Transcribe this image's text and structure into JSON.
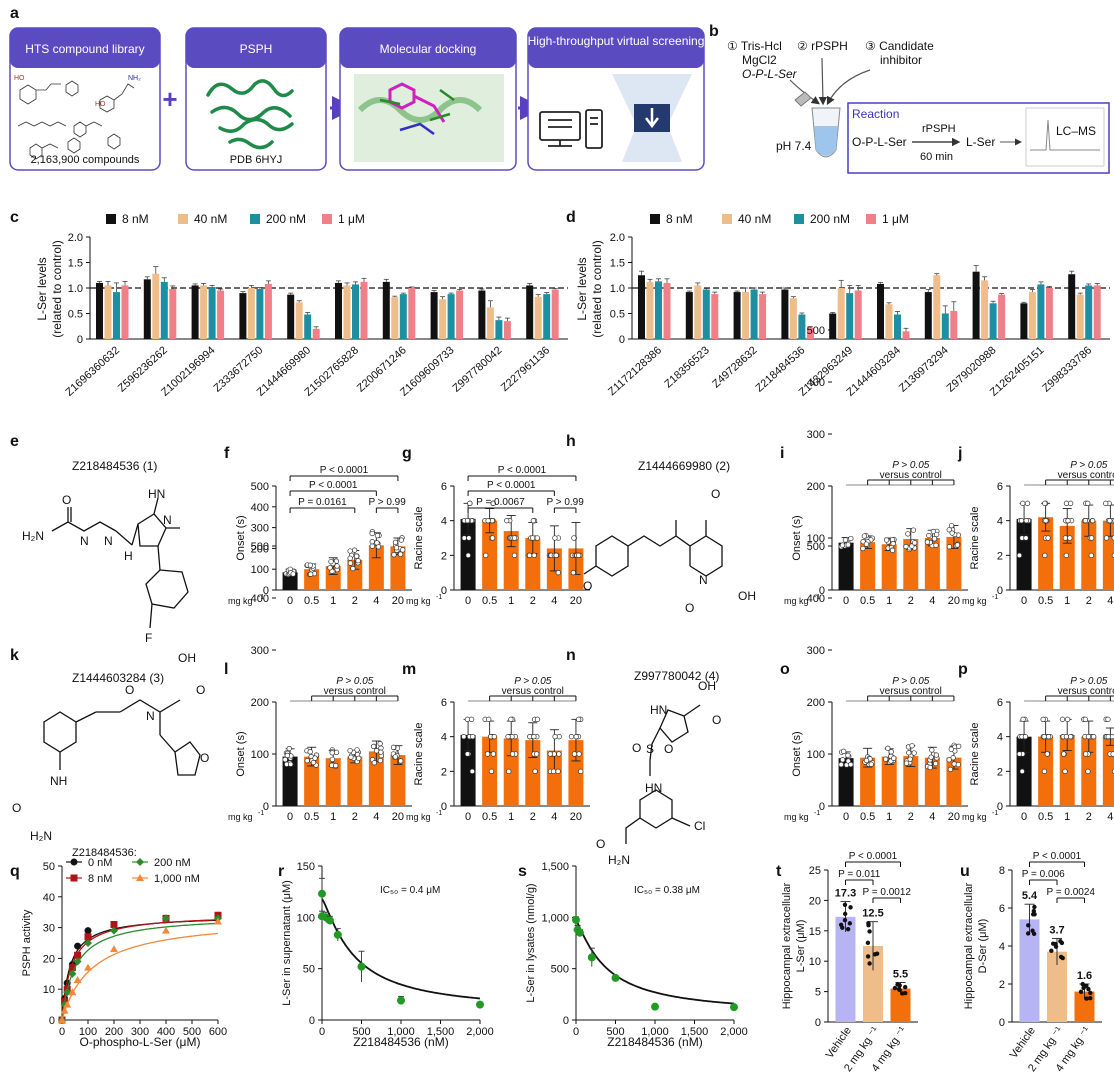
{
  "colors": {
    "black": "#111111",
    "tan": "#eebd8a",
    "teal": "#1e8fa3",
    "pink": "#ef8088",
    "orange": "#f26f0c",
    "lavender": "#b7b4f3",
    "box_blue": "#5b4bc1",
    "arrow": "#5a3fc0",
    "q_black": "#111111",
    "q_red": "#b01515",
    "q_green": "#2d8a2d",
    "q_orange": "#f08a3a",
    "green": "#1f9a22"
  },
  "panel_a": {
    "label": "a",
    "box1_title": "HTS compound library",
    "box1_caption": "2,163,900 compounds",
    "box2_title": "PSPH",
    "box2_caption": "PDB 6HYJ",
    "box3_title": "Molecular docking",
    "box4_title": "High-throughput virtual screening",
    "plus": "+"
  },
  "panel_b": {
    "label": "b",
    "item1": "① Tris-Hcl",
    "item1b": "MgCl2",
    "item1c": "O-P-L-Ser",
    "item2": "② rPSPH",
    "item3": "③ Candidate",
    "item3b": "inhibitor",
    "ph": "pH 7.4",
    "reaction_title": "Reaction",
    "substrate": "O-P-L-Ser",
    "enzyme": "rPSPH",
    "time": "60 min",
    "product": "L-Ser",
    "detector": "LC–MS"
  },
  "legend_cd": [
    "8 nM",
    "40 nM",
    "200 nM",
    "1 μM"
  ],
  "panel_c": {
    "label": "c",
    "ylabel1": "L-Ser levels",
    "ylabel2": "(related to control)",
    "yticks": [
      "0",
      "0.5",
      "1.0",
      "1.5",
      "2.0"
    ],
    "compounds": [
      "Z1696360632",
      "Z596236262",
      "Z1002196994",
      "Z333672750",
      "Z1444669980",
      "Z1502765828",
      "Z200671246",
      "Z1609609733",
      "Z997780042",
      "Z227961136"
    ]
  },
  "panel_d": {
    "label": "d",
    "ylabel1": "L-Ser levels",
    "ylabel2": "(related to control)",
    "yticks": [
      "0",
      "0.5",
      "1.0",
      "1.5",
      "2.0"
    ],
    "compounds": [
      "Z1172128386",
      "Z18356523",
      "Z49728632",
      "Z218484536",
      "Z1432963249",
      "Z1444603284",
      "Z136973294",
      "Z979020988",
      "Z1262405151",
      "Z998333786"
    ]
  },
  "structures": {
    "e_label": "e",
    "e_title": "Z218484536 (1)",
    "h_label": "h",
    "h_title": "Z1444669980 (2)",
    "k_label": "k",
    "k_title": "Z1444603284 (3)",
    "n_label": "n",
    "n_title": "Z997780042 (4)",
    "atoms": {
      "O": "O",
      "H2N": "H₂N",
      "N": "N",
      "H": "H",
      "HN": "HN",
      "NH": "NH",
      "F": "F",
      "OH": "OH",
      "S": "S",
      "Cl": "Cl"
    }
  },
  "behavior": {
    "xlabels": [
      "0",
      "0.5",
      "1",
      "2",
      "4",
      "20"
    ],
    "mgkg": "mg kg",
    "mgkg_sup": "-1",
    "onset_ylabel": "Onset (s)",
    "racine_ylabel": "Racine scale",
    "onset_ticks": [
      "0",
      "100",
      "200",
      "300",
      "400",
      "500"
    ],
    "racine_ticks": [
      "0",
      "2",
      "4",
      "6"
    ],
    "p_ns": "P > 0.05",
    "p_vs": "versus control"
  },
  "panel_f": {
    "label": "f",
    "p1": "P < 0.0001",
    "p2": "P < 0.0001",
    "p3": "P = 0.0161",
    "p4": "P > 0.99"
  },
  "panel_g": {
    "label": "g",
    "p1": "P < 0.0001",
    "p2": "P < 0.0001",
    "p3": "P = 0.0067",
    "p4": "P > 0.99"
  },
  "panel_i": {
    "label": "i"
  },
  "panel_j": {
    "label": "j"
  },
  "panel_l": {
    "label": "l"
  },
  "panel_m": {
    "label": "m"
  },
  "panel_o": {
    "label": "o"
  },
  "panel_p": {
    "label": "p"
  },
  "panel_q": {
    "label": "q",
    "title": "Z218484536:",
    "legend": [
      "0 nM",
      "8 nM",
      "200 nM",
      "1,000 nM"
    ],
    "ylabel": "PSPH activity",
    "xlabel": "O-phospho-L-Ser (μM)",
    "xticks": [
      "0",
      "100",
      "200",
      "300",
      "400",
      "500",
      "600"
    ],
    "yticks": [
      "0",
      "10",
      "20",
      "30",
      "40",
      "50"
    ]
  },
  "panel_r": {
    "label": "r",
    "ylabel": "L-Ser in supernatant (μM)",
    "xlabel": "Z218484536 (nM)",
    "ic50": "IC₅₀ = 0.4 μM",
    "xticks": [
      "0",
      "500",
      "1,000",
      "1,500",
      "2,000"
    ],
    "yticks": [
      "0",
      "50",
      "100",
      "150"
    ]
  },
  "panel_s": {
    "label": "s",
    "ylabel": "L-Ser in lysates (nmol/g)",
    "xlabel": "Z218484536 (nM)",
    "ic50": "IC₅₀ = 0.38 μM",
    "xticks": [
      "0",
      "500",
      "1,000",
      "1,500",
      "2,000"
    ],
    "yticks": [
      "0",
      "500",
      "1,000",
      "1,500"
    ]
  },
  "panel_t": {
    "label": "t",
    "ylabel1": "Hippocampal extracellular",
    "ylabel2": "L-Ser (μM)",
    "p1": "P < 0.0001",
    "p2": "P = 0.011",
    "p3": "P = 0.0012",
    "yticks": [
      "0",
      "5",
      "10",
      "15",
      "20",
      "25"
    ],
    "cats": [
      "Vehicle",
      "2 mg kg ⁻¹",
      "4 mg kg ⁻¹"
    ],
    "vals": [
      "17.3",
      "12.5",
      "5.5"
    ]
  },
  "panel_u": {
    "label": "u",
    "ylabel1": "Hippocampal extracellular",
    "ylabel2": "D-Ser (μM)",
    "p1": "P < 0.0001",
    "p2": "P = 0.006",
    "p3": "P = 0.0024",
    "yticks": [
      "0",
      "2",
      "4",
      "6",
      "8"
    ],
    "cats": [
      "Vehicle",
      "2 mg kg ⁻¹",
      "4 mg kg ⁻¹"
    ],
    "vals": [
      "5.4",
      "3.7",
      "1.6"
    ]
  },
  "chart_data": [
    {
      "type": "bar",
      "panel": "c",
      "categories": [
        "Z1696360632",
        "Z596236262",
        "Z1002196994",
        "Z333672750",
        "Z1444669980",
        "Z1502765828",
        "Z200671246",
        "Z1609609733",
        "Z997780042",
        "Z227961136"
      ],
      "ylabel": "L-Ser levels (related to control)",
      "ylim": [
        0,
        2.0
      ],
      "series": [
        {
          "name": "8 nM",
          "values": [
            1.1,
            1.17,
            1.05,
            0.9,
            0.87,
            1.1,
            1.12,
            0.92,
            0.95,
            1.05
          ]
        },
        {
          "name": "40 nM",
          "values": [
            1.05,
            1.28,
            1.05,
            1.0,
            0.72,
            1.05,
            0.82,
            0.78,
            0.62,
            0.83
          ]
        },
        {
          "name": "200 nM",
          "values": [
            0.92,
            1.12,
            1.02,
            0.98,
            0.48,
            1.07,
            0.88,
            0.88,
            0.37,
            0.88
          ]
        },
        {
          "name": "1 μM",
          "values": [
            1.05,
            0.98,
            0.95,
            1.08,
            0.2,
            1.12,
            1.0,
            0.95,
            0.35,
            0.97
          ]
        }
      ],
      "errors": [
        [
          0.03,
          0.05,
          0.03,
          0.03,
          0.03,
          0.04,
          0.05,
          0.03,
          0.03,
          0.04
        ],
        [
          0.08,
          0.14,
          0.04,
          0.05,
          0.03,
          0.05,
          0.02,
          0.05,
          0.13,
          0.04
        ],
        [
          0.18,
          0.08,
          0.03,
          0.03,
          0.04,
          0.05,
          0.02,
          0.02,
          0.06,
          0.03
        ],
        [
          0.08,
          0.06,
          0.03,
          0.06,
          0.04,
          0.07,
          0.02,
          0.02,
          0.06,
          0.02
        ]
      ]
    },
    {
      "type": "bar",
      "panel": "d",
      "categories": [
        "Z1172128386",
        "Z18356523",
        "Z49728632",
        "Z218484536",
        "Z1432963249",
        "Z1444603284",
        "Z136973294",
        "Z979020988",
        "Z1262405151",
        "Z998333786"
      ],
      "ylabel": "L-Ser levels (related to control)",
      "ylim": [
        0,
        2.0
      ],
      "series": [
        {
          "name": "8 nM",
          "values": [
            1.25,
            0.92,
            0.92,
            0.97,
            0.5,
            1.08,
            0.92,
            1.32,
            0.7,
            1.27
          ]
        },
        {
          "name": "40 nM",
          "values": [
            1.12,
            1.05,
            0.92,
            0.8,
            1.0,
            0.68,
            1.25,
            1.15,
            0.92,
            0.87
          ]
        },
        {
          "name": "200 nM",
          "values": [
            1.13,
            0.97,
            0.97,
            0.48,
            0.9,
            0.48,
            0.5,
            0.7,
            1.07,
            1.05
          ]
        },
        {
          "name": "1 μM",
          "values": [
            1.1,
            0.88,
            0.88,
            0.22,
            0.95,
            0.15,
            0.55,
            0.87,
            1.0,
            1.05
          ]
        }
      ],
      "errors": [
        [
          0.08,
          0.02,
          0.02,
          0.03,
          0.02,
          0.03,
          0.05,
          0.12,
          0.02,
          0.06
        ],
        [
          0.05,
          0.05,
          0.08,
          0.03,
          0.15,
          0.03,
          0.03,
          0.07,
          0.05,
          0.03
        ],
        [
          0.05,
          0.02,
          0.03,
          0.03,
          0.15,
          0.06,
          0.15,
          0.04,
          0.05,
          0.03
        ],
        [
          0.08,
          0.04,
          0.04,
          0.02,
          0.1,
          0.06,
          0.18,
          0.02,
          0.03,
          0.04
        ]
      ]
    },
    {
      "type": "bar",
      "panel": "f",
      "categories": [
        "0",
        "0.5",
        "1",
        "2",
        "4",
        "20"
      ],
      "ylabel": "Onset (s)",
      "ylim": [
        0,
        500
      ],
      "values": [
        85,
        100,
        115,
        145,
        215,
        210
      ],
      "errors": [
        15,
        25,
        40,
        45,
        60,
        40
      ]
    },
    {
      "type": "bar",
      "panel": "g",
      "categories": [
        "0",
        "0.5",
        "1",
        "2",
        "4",
        "20"
      ],
      "ylabel": "Racine scale",
      "ylim": [
        0,
        6
      ],
      "values": [
        4.1,
        4.0,
        3.4,
        3.0,
        2.4,
        2.4
      ],
      "errors": [
        0.9,
        0.7,
        0.9,
        0.9,
        1.3,
        1.5
      ]
    },
    {
      "type": "bar",
      "panel": "i",
      "categories": [
        "0",
        "0.5",
        "1",
        "2",
        "4",
        "20"
      ],
      "ylabel": "Onset (s)",
      "ylim": [
        0,
        200
      ],
      "values": [
        91,
        92,
        88,
        98,
        100,
        102
      ],
      "errors": [
        10,
        12,
        12,
        20,
        15,
        22
      ]
    },
    {
      "type": "bar",
      "panel": "j",
      "categories": [
        "0",
        "0.5",
        "1",
        "2",
        "4",
        "20"
      ],
      "ylabel": "Racine scale",
      "ylim": [
        0,
        6
      ],
      "values": [
        4.1,
        4.2,
        3.7,
        4.0,
        4.0,
        4.0
      ],
      "errors": [
        0.9,
        0.8,
        1.0,
        0.9,
        0.9,
        0.8
      ]
    },
    {
      "type": "bar",
      "panel": "l",
      "categories": [
        "0",
        "0.5",
        "1",
        "2",
        "4",
        "20"
      ],
      "ylabel": "Onset (s)",
      "ylim": [
        0,
        200
      ],
      "values": [
        95,
        95,
        92,
        95,
        105,
        98
      ],
      "errors": [
        15,
        18,
        15,
        12,
        20,
        18
      ]
    },
    {
      "type": "bar",
      "panel": "m",
      "categories": [
        "0",
        "0.5",
        "1",
        "2",
        "4",
        "20"
      ],
      "ylabel": "Racine scale",
      "ylim": [
        0,
        6
      ],
      "values": [
        4.1,
        4.0,
        3.9,
        3.8,
        3.2,
        3.8
      ],
      "errors": [
        0.9,
        0.9,
        1.0,
        1.0,
        1.2,
        1.2
      ]
    },
    {
      "type": "bar",
      "panel": "o",
      "categories": [
        "0",
        "0.5",
        "1",
        "2",
        "4",
        "20"
      ],
      "ylabel": "Onset (s)",
      "ylim": [
        0,
        200
      ],
      "values": [
        92,
        93,
        95,
        96,
        93,
        93
      ],
      "errors": [
        12,
        18,
        15,
        20,
        20,
        22
      ]
    },
    {
      "type": "bar",
      "panel": "p",
      "categories": [
        "0",
        "0.5",
        "1",
        "2",
        "4",
        "20"
      ],
      "ylabel": "Racine scale",
      "ylim": [
        0,
        6
      ],
      "values": [
        4.0,
        4.0,
        4.1,
        4.0,
        4.0,
        4.0
      ],
      "errors": [
        0.9,
        0.9,
        0.9,
        0.9,
        0.5,
        1.0
      ]
    },
    {
      "type": "line",
      "panel": "q",
      "xlabel": "O-phospho-L-Ser (μM)",
      "ylabel": "PSPH activity",
      "xlim": [
        0,
        600
      ],
      "ylim": [
        0,
        50
      ],
      "x": [
        0,
        10,
        20,
        40,
        60,
        100,
        200,
        400,
        600
      ],
      "series": [
        {
          "name": "0 nM",
          "values": [
            0,
            7,
            12,
            18,
            24,
            29,
            31,
            33,
            34
          ]
        },
        {
          "name": "8 nM",
          "values": [
            0,
            6,
            10,
            17,
            21,
            27,
            31,
            33,
            34
          ]
        },
        {
          "name": "200 nM",
          "values": [
            0,
            5,
            9,
            15,
            19,
            25,
            29,
            33,
            33
          ]
        },
        {
          "name": "1,000 nM",
          "values": [
            0,
            3,
            5,
            9,
            13,
            17,
            23,
            29,
            32
          ]
        }
      ]
    },
    {
      "type": "scatter",
      "panel": "r",
      "xlabel": "Z218484536 (nM)",
      "ylabel": "L-Ser in supernatant (μM)",
      "xlim": [
        0,
        2000
      ],
      "ylim": [
        0,
        150
      ],
      "x": [
        0,
        0,
        50,
        100,
        200,
        500,
        1000,
        2000
      ],
      "values": [
        123,
        101,
        100,
        97,
        83,
        52,
        19,
        15
      ],
      "errors": [
        15,
        5,
        5,
        4,
        6,
        15,
        4,
        1
      ]
    },
    {
      "type": "scatter",
      "panel": "s",
      "xlabel": "Z218484536 (nM)",
      "ylabel": "L-Ser in lysates (nmol/g)",
      "xlim": [
        0,
        2000
      ],
      "ylim": [
        0,
        1500
      ],
      "x": [
        0,
        20,
        50,
        200,
        500,
        1000,
        2000
      ],
      "values": [
        975,
        880,
        850,
        610,
        410,
        130,
        125
      ],
      "errors": [
        30,
        40,
        30,
        90,
        20,
        10,
        10
      ]
    },
    {
      "type": "bar",
      "panel": "t",
      "categories": [
        "Vehicle",
        "2 mg kg ⁻¹",
        "4 mg kg ⁻¹"
      ],
      "ylabel": "Hippocampal extracellular L-Ser (μM)",
      "ylim": [
        0,
        25
      ],
      "values": [
        17.3,
        12.5,
        5.5
      ],
      "errors": [
        2.5,
        4.0,
        1.0
      ]
    },
    {
      "type": "bar",
      "panel": "u",
      "categories": [
        "Vehicle",
        "2 mg kg ⁻¹",
        "4 mg kg ⁻¹"
      ],
      "ylabel": "Hippocampal extracellular D-Ser (μM)",
      "ylim": [
        0,
        8
      ],
      "values": [
        5.4,
        3.7,
        1.6
      ],
      "errors": [
        0.8,
        0.7,
        0.4
      ]
    }
  ]
}
